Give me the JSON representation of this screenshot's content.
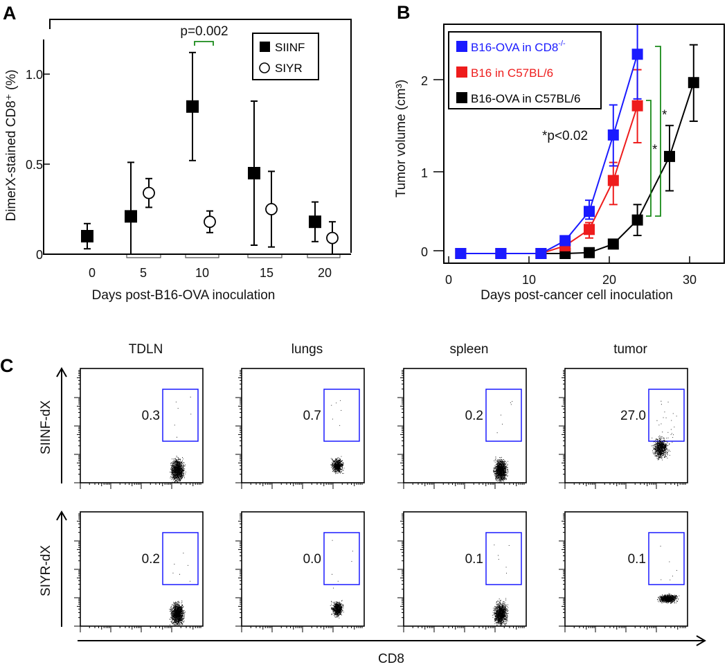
{
  "chart_data": [
    {
      "panel": "A",
      "type": "scatter",
      "title": "",
      "xlabel": "Days post-B16-OVA inoculation",
      "ylabel": "DimerX-stained CD8⁺ (%)",
      "ylim": [
        0,
        1.2
      ],
      "x_ticks": [
        "0",
        "5",
        "10",
        "15",
        "20"
      ],
      "y_ticks": [
        "0",
        "0.5",
        "1.0"
      ],
      "legend": {
        "placement": "top-right",
        "entries": [
          "SIINF",
          "SIYR"
        ]
      },
      "annotation": "p=0.002",
      "series": [
        {
          "name": "SIINF",
          "marker": "filled-square",
          "x": [
            0,
            5,
            10,
            15,
            20
          ],
          "y": [
            0.1,
            0.21,
            0.82,
            0.45,
            0.18
          ],
          "err_low": [
            0.03,
            0.0,
            0.52,
            0.05,
            0.07
          ],
          "err_high": [
            0.17,
            0.51,
            1.12,
            0.85,
            0.29
          ]
        },
        {
          "name": "SIYR",
          "marker": "open-circle",
          "x": [
            5,
            10,
            15,
            20
          ],
          "y": [
            0.34,
            0.18,
            0.25,
            0.09
          ],
          "err_low": [
            0.26,
            0.12,
            0.04,
            0.0
          ],
          "err_high": [
            0.42,
            0.24,
            0.46,
            0.18
          ]
        }
      ]
    },
    {
      "panel": "B",
      "type": "line",
      "title": "",
      "xlabel": "Days post-cancer cell inoculation",
      "ylabel": "Tumor volume (cm³)",
      "xlim": [
        0,
        34
      ],
      "ylim": [
        -0.1,
        2.5
      ],
      "x_ticks": [
        "0",
        "10",
        "20",
        "30"
      ],
      "y_ticks": [
        "0",
        "1",
        "2"
      ],
      "legend": {
        "placement": "top-left",
        "entries": [
          "B16-OVA in CD8-/-",
          "B16 in C57BL/6",
          "B16-OVA in C57BL/6"
        ]
      },
      "annotations": [
        "*p<0.02",
        "*",
        "*"
      ],
      "series": [
        {
          "name": "B16-OVA in CD8-/-",
          "label_main": "B16-OVA in CD8",
          "label_sup": "-/-",
          "color": "#1a1aff",
          "x": [
            1.5,
            6.5,
            11.5,
            14.5,
            17.5,
            20.5,
            23.5
          ],
          "y": [
            0,
            0,
            0,
            0.15,
            0.49,
            1.38,
            2.32
          ],
          "err_low": [
            null,
            null,
            null,
            null,
            0.4,
            1.02,
            1.8
          ],
          "err_high": [
            null,
            null,
            null,
            null,
            0.62,
            1.73,
            2.7
          ]
        },
        {
          "name": "B16 in C57BL/6",
          "color": "#ee1c1c",
          "x": [
            1.5,
            6.5,
            11.5,
            14.5,
            17.5,
            20.5,
            23.5
          ],
          "y": [
            0,
            0,
            0,
            0.09,
            0.28,
            0.85,
            1.72
          ],
          "err_low": [
            null,
            null,
            null,
            null,
            0.18,
            0.57,
            1.29
          ],
          "err_high": [
            null,
            null,
            null,
            null,
            0.36,
            1.06,
            2.14
          ]
        },
        {
          "name": "B16-OVA in C57BL/6",
          "color": "#000000",
          "x": [
            1.5,
            6.5,
            11.5,
            14.5,
            17.5,
            20.5,
            23.5,
            27.5,
            30.5
          ],
          "y": [
            0,
            0,
            0,
            0,
            0.01,
            0.11,
            0.39,
            1.13,
            1.99
          ],
          "err_low": [
            null,
            null,
            null,
            null,
            null,
            0.06,
            0.21,
            0.73,
            1.54
          ],
          "err_high": [
            null,
            null,
            null,
            null,
            null,
            0.15,
            0.57,
            1.49,
            2.43
          ]
        }
      ]
    },
    {
      "panel": "C",
      "type": "scatter",
      "title": "",
      "xlabel": "CD8",
      "columns": [
        "TDLN",
        "lungs",
        "spleen",
        "tumor"
      ],
      "rows": [
        {
          "ylabel": "SIINF-dX",
          "gate_percent": [
            "0.3",
            "0.7",
            "0.2",
            "27.0"
          ]
        },
        {
          "ylabel": "SIYR-dX",
          "gate_percent": [
            "0.2",
            "0.0",
            "0.1",
            "0.1"
          ]
        }
      ],
      "gate_color": "#1a1aff"
    }
  ],
  "panels": {
    "a": "A",
    "b": "B",
    "c": "C"
  },
  "colors": {
    "green": "#1a8a1a",
    "blue": "#1a1aff",
    "red": "#ee1c1c",
    "black": "#000000"
  }
}
